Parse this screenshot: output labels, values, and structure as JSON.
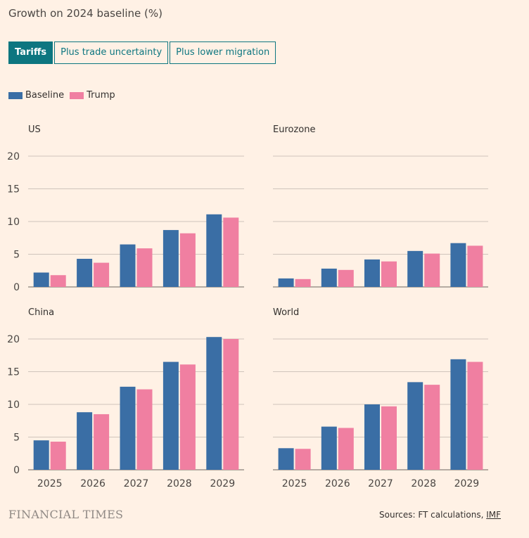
{
  "title": "Growth on 2024 baseline (%)",
  "tabs": [
    {
      "label": "Tariffs",
      "active": true
    },
    {
      "label": "Plus trade uncertainty",
      "active": false
    },
    {
      "label": "Plus lower migration",
      "active": false
    }
  ],
  "legend": [
    {
      "label": "Baseline",
      "color": "#3a6ea5"
    },
    {
      "label": "Trump",
      "color": "#f07fa1"
    }
  ],
  "footer": {
    "logo": "FINANCIAL TIMES",
    "sources_prefix": "Sources: FT calculations, ",
    "sources_link": "IMF"
  },
  "colors": {
    "baseline": "#3a6ea5",
    "trump": "#f07fa1",
    "accent": "#0d7680",
    "grid": "#cfc4bb"
  },
  "chart_data": [
    {
      "type": "bar",
      "title": "US",
      "categories": [
        "2025",
        "2026",
        "2027",
        "2028",
        "2029"
      ],
      "ylim": [
        0,
        20
      ],
      "yticks": [
        0,
        5,
        10,
        15,
        20
      ],
      "series": [
        {
          "name": "Baseline",
          "values": [
            2.2,
            4.3,
            6.5,
            8.7,
            11.1
          ]
        },
        {
          "name": "Trump",
          "values": [
            1.8,
            3.7,
            5.9,
            8.2,
            10.6
          ]
        }
      ]
    },
    {
      "type": "bar",
      "title": "Eurozone",
      "categories": [
        "2025",
        "2026",
        "2027",
        "2028",
        "2029"
      ],
      "ylim": [
        0,
        20
      ],
      "yticks": [
        0,
        5,
        10,
        15,
        20
      ],
      "series": [
        {
          "name": "Baseline",
          "values": [
            1.3,
            2.8,
            4.2,
            5.5,
            6.7
          ]
        },
        {
          "name": "Trump",
          "values": [
            1.2,
            2.6,
            3.9,
            5.1,
            6.3
          ]
        }
      ]
    },
    {
      "type": "bar",
      "title": "China",
      "categories": [
        "2025",
        "2026",
        "2027",
        "2028",
        "2029"
      ],
      "ylim": [
        0,
        20
      ],
      "yticks": [
        0,
        5,
        10,
        15,
        20
      ],
      "series": [
        {
          "name": "Baseline",
          "values": [
            4.5,
            8.8,
            12.7,
            16.5,
            20.3
          ]
        },
        {
          "name": "Trump",
          "values": [
            4.3,
            8.5,
            12.3,
            16.1,
            20.0
          ]
        }
      ]
    },
    {
      "type": "bar",
      "title": "World",
      "categories": [
        "2025",
        "2026",
        "2027",
        "2028",
        "2029"
      ],
      "ylim": [
        0,
        20
      ],
      "yticks": [
        0,
        5,
        10,
        15,
        20
      ],
      "series": [
        {
          "name": "Baseline",
          "values": [
            3.3,
            6.6,
            10.0,
            13.4,
            16.9
          ]
        },
        {
          "name": "Trump",
          "values": [
            3.2,
            6.4,
            9.7,
            13.0,
            16.5
          ]
        }
      ]
    }
  ]
}
